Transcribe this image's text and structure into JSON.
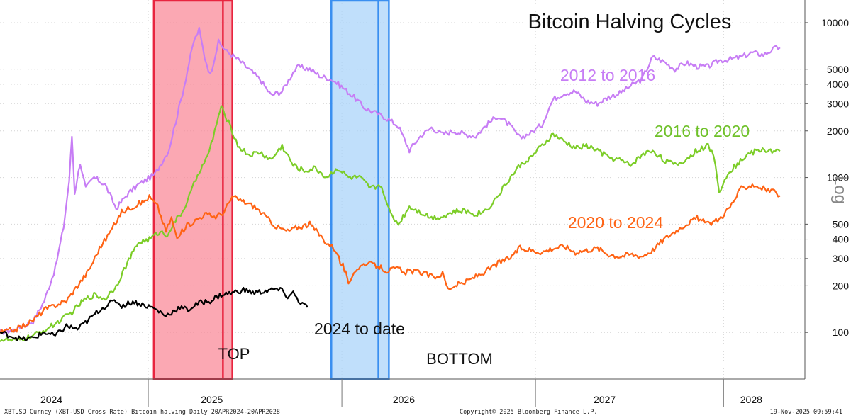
{
  "chart_data": {
    "type": "line",
    "title": "Bitcoin Halving Cycles",
    "ylabel": "Log",
    "yscale": "log",
    "ylim": [
      50,
      14000
    ],
    "y_ticks": [
      100,
      200,
      300,
      400,
      500,
      1000,
      2000,
      3000,
      4000,
      5000,
      10000
    ],
    "x_labels": [
      "2024",
      "2025",
      "2026",
      "2027",
      "2028"
    ],
    "x_label_day": [
      93,
      383,
      730,
      1093,
      1358
    ],
    "x_separators": [
      268,
      618,
      968,
      1308
    ],
    "xlim": [
      0,
      1455
    ],
    "grid": true,
    "series": [
      {
        "name": "2012 to 2016",
        "color": "#c77df5",
        "points": [
          [
            0,
            100
          ],
          [
            30,
            105
          ],
          [
            60,
            118
          ],
          [
            80,
            160
          ],
          [
            100,
            260
          ],
          [
            115,
            480
          ],
          [
            125,
            950
          ],
          [
            130,
            1850
          ],
          [
            135,
            800
          ],
          [
            145,
            1250
          ],
          [
            155,
            850
          ],
          [
            170,
            1000
          ],
          [
            190,
            900
          ],
          [
            210,
            630
          ],
          [
            230,
            780
          ],
          [
            250,
            900
          ],
          [
            280,
            1050
          ],
          [
            305,
            1500
          ],
          [
            330,
            3500
          ],
          [
            350,
            7500
          ],
          [
            360,
            9000
          ],
          [
            370,
            6000
          ],
          [
            380,
            4600
          ],
          [
            395,
            7500
          ],
          [
            410,
            6500
          ],
          [
            430,
            5800
          ],
          [
            450,
            5000
          ],
          [
            470,
            4300
          ],
          [
            490,
            3400
          ],
          [
            510,
            3600
          ],
          [
            530,
            4800
          ],
          [
            540,
            5200
          ],
          [
            560,
            5000
          ],
          [
            580,
            4500
          ],
          [
            600,
            4300
          ],
          [
            620,
            3800
          ],
          [
            640,
            3300
          ],
          [
            660,
            2800
          ],
          [
            680,
            2600
          ],
          [
            700,
            2400
          ],
          [
            720,
            2150
          ],
          [
            740,
            1500
          ],
          [
            760,
            1850
          ],
          [
            780,
            2100
          ],
          [
            800,
            1900
          ],
          [
            820,
            2000
          ],
          [
            840,
            1900
          ],
          [
            860,
            1850
          ],
          [
            880,
            2200
          ],
          [
            900,
            2500
          ],
          [
            920,
            2200
          ],
          [
            940,
            1800
          ],
          [
            960,
            1950
          ],
          [
            980,
            2200
          ],
          [
            990,
            2700
          ],
          [
            1000,
            3200
          ],
          [
            1020,
            3500
          ],
          [
            1040,
            3600
          ],
          [
            1060,
            3100
          ],
          [
            1080,
            3000
          ],
          [
            1100,
            3300
          ],
          [
            1120,
            3500
          ],
          [
            1140,
            3900
          ],
          [
            1160,
            4300
          ],
          [
            1180,
            6000
          ],
          [
            1200,
            5600
          ],
          [
            1220,
            5000
          ],
          [
            1240,
            5500
          ],
          [
            1260,
            5200
          ],
          [
            1280,
            5200
          ],
          [
            1300,
            5700
          ],
          [
            1320,
            5800
          ],
          [
            1340,
            6000
          ],
          [
            1360,
            6400
          ],
          [
            1380,
            6200
          ],
          [
            1400,
            6800
          ],
          [
            1410,
            6900
          ]
        ]
      },
      {
        "name": "2016 to 2020",
        "color": "#7ccd28",
        "points": [
          [
            0,
            90
          ],
          [
            30,
            88
          ],
          [
            60,
            95
          ],
          [
            90,
            108
          ],
          [
            110,
            120
          ],
          [
            130,
            135
          ],
          [
            150,
            160
          ],
          [
            170,
            175
          ],
          [
            190,
            165
          ],
          [
            210,
            200
          ],
          [
            230,
            280
          ],
          [
            250,
            380
          ],
          [
            270,
            400
          ],
          [
            290,
            450
          ],
          [
            300,
            420
          ],
          [
            320,
            540
          ],
          [
            330,
            600
          ],
          [
            345,
            800
          ],
          [
            360,
            1100
          ],
          [
            375,
            1350
          ],
          [
            385,
            1800
          ],
          [
            395,
            2500
          ],
          [
            400,
            2800
          ],
          [
            410,
            2400
          ],
          [
            420,
            2000
          ],
          [
            430,
            1600
          ],
          [
            450,
            1400
          ],
          [
            470,
            1450
          ],
          [
            490,
            1300
          ],
          [
            510,
            1600
          ],
          [
            530,
            1200
          ],
          [
            550,
            1100
          ],
          [
            570,
            1150
          ],
          [
            590,
            1000
          ],
          [
            610,
            1150
          ],
          [
            630,
            1000
          ],
          [
            650,
            1000
          ],
          [
            670,
            850
          ],
          [
            690,
            900
          ],
          [
            700,
            650
          ],
          [
            710,
            560
          ],
          [
            720,
            500
          ],
          [
            740,
            650
          ],
          [
            760,
            600
          ],
          [
            780,
            550
          ],
          [
            800,
            560
          ],
          [
            820,
            600
          ],
          [
            840,
            610
          ],
          [
            860,
            580
          ],
          [
            880,
            620
          ],
          [
            900,
            760
          ],
          [
            920,
            970
          ],
          [
            940,
            1200
          ],
          [
            960,
            1350
          ],
          [
            980,
            1600
          ],
          [
            1000,
            1900
          ],
          [
            1020,
            1700
          ],
          [
            1040,
            1550
          ],
          [
            1060,
            1600
          ],
          [
            1080,
            1500
          ],
          [
            1100,
            1350
          ],
          [
            1120,
            1300
          ],
          [
            1140,
            1200
          ],
          [
            1160,
            1400
          ],
          [
            1180,
            1500
          ],
          [
            1200,
            1300
          ],
          [
            1220,
            1200
          ],
          [
            1240,
            1300
          ],
          [
            1260,
            1500
          ],
          [
            1280,
            1600
          ],
          [
            1290,
            1400
          ],
          [
            1300,
            800
          ],
          [
            1310,
            1000
          ],
          [
            1330,
            1200
          ],
          [
            1350,
            1400
          ],
          [
            1370,
            1500
          ],
          [
            1390,
            1500
          ],
          [
            1410,
            1480
          ]
        ]
      },
      {
        "name": "2020 to 2024",
        "color": "#ff6314",
        "points": [
          [
            0,
            100
          ],
          [
            30,
            105
          ],
          [
            60,
            120
          ],
          [
            80,
            140
          ],
          [
            100,
            150
          ],
          [
            120,
            160
          ],
          [
            140,
            200
          ],
          [
            160,
            250
          ],
          [
            180,
            350
          ],
          [
            200,
            450
          ],
          [
            220,
            600
          ],
          [
            240,
            650
          ],
          [
            260,
            700
          ],
          [
            270,
            750
          ],
          [
            285,
            650
          ],
          [
            300,
            450
          ],
          [
            310,
            550
          ],
          [
            320,
            400
          ],
          [
            335,
            480
          ],
          [
            350,
            520
          ],
          [
            370,
            580
          ],
          [
            390,
            560
          ],
          [
            405,
            600
          ],
          [
            420,
            750
          ],
          [
            440,
            700
          ],
          [
            460,
            650
          ],
          [
            480,
            560
          ],
          [
            500,
            480
          ],
          [
            520,
            450
          ],
          [
            540,
            480
          ],
          [
            560,
            500
          ],
          [
            580,
            420
          ],
          [
            590,
            380
          ],
          [
            600,
            360
          ],
          [
            610,
            330
          ],
          [
            615,
            280
          ],
          [
            620,
            270
          ],
          [
            625,
            240
          ],
          [
            630,
            200
          ],
          [
            640,
            250
          ],
          [
            660,
            280
          ],
          [
            680,
            270
          ],
          [
            700,
            250
          ],
          [
            720,
            260
          ],
          [
            730,
            240
          ],
          [
            740,
            250
          ],
          [
            760,
            245
          ],
          [
            780,
            230
          ],
          [
            790,
            230
          ],
          [
            800,
            240
          ],
          [
            810,
            190
          ],
          [
            820,
            200
          ],
          [
            840,
            210
          ],
          [
            860,
            230
          ],
          [
            880,
            250
          ],
          [
            900,
            280
          ],
          [
            920,
            300
          ],
          [
            940,
            350
          ],
          [
            960,
            340
          ],
          [
            980,
            330
          ],
          [
            1000,
            350
          ],
          [
            1020,
            360
          ],
          [
            1040,
            330
          ],
          [
            1060,
            340
          ],
          [
            1080,
            350
          ],
          [
            1100,
            320
          ],
          [
            1120,
            310
          ],
          [
            1140,
            320
          ],
          [
            1160,
            310
          ],
          [
            1180,
            340
          ],
          [
            1200,
            400
          ],
          [
            1220,
            450
          ],
          [
            1240,
            500
          ],
          [
            1260,
            550
          ],
          [
            1280,
            500
          ],
          [
            1300,
            540
          ],
          [
            1320,
            650
          ],
          [
            1340,
            850
          ],
          [
            1360,
            900
          ],
          [
            1380,
            850
          ],
          [
            1400,
            800
          ],
          [
            1410,
            760
          ]
        ]
      },
      {
        "name": "2024 to date",
        "color": "#000000",
        "points": [
          [
            0,
            100
          ],
          [
            20,
            95
          ],
          [
            40,
            90
          ],
          [
            60,
            92
          ],
          [
            80,
            100
          ],
          [
            100,
            95
          ],
          [
            120,
            110
          ],
          [
            140,
            105
          ],
          [
            160,
            120
          ],
          [
            180,
            140
          ],
          [
            200,
            155
          ],
          [
            210,
            160
          ],
          [
            220,
            148
          ],
          [
            240,
            158
          ],
          [
            260,
            150
          ],
          [
            275,
            145
          ],
          [
            290,
            135
          ],
          [
            300,
            128
          ],
          [
            310,
            135
          ],
          [
            325,
            145
          ],
          [
            340,
            140
          ],
          [
            360,
            155
          ],
          [
            380,
            160
          ],
          [
            400,
            175
          ],
          [
            420,
            180
          ],
          [
            440,
            188
          ],
          [
            460,
            180
          ],
          [
            480,
            185
          ],
          [
            500,
            190
          ],
          [
            510,
            185
          ],
          [
            520,
            170
          ],
          [
            530,
            180
          ],
          [
            540,
            160
          ],
          [
            550,
            150
          ],
          [
            556,
            145
          ]
        ]
      }
    ],
    "bands": [
      {
        "label": "TOP",
        "color": "#fa8796",
        "border": "#e8243f",
        "x0": 278,
        "x1": 420,
        "inner_line": 403
      },
      {
        "label": "BOTTOM",
        "color": "#a8d2fa",
        "border": "#3a8ff0",
        "x0": 599,
        "x1": 703,
        "inner_line": 684
      }
    ]
  },
  "annotations": {
    "label_2012": "2012 to 2016",
    "label_2016": "2016 to 2020",
    "label_2020": "2020 to 2024",
    "label_2024": "2024 to date"
  },
  "footer": {
    "left": "XBTUSD Curncy (XBT-USD Cross Rate) Bitcoin halving Daily 20APR2024-20APR2028",
    "center": "Copyright© 2025 Bloomberg Finance L.P.",
    "right": "19-Nov-2025 09:59:41"
  }
}
